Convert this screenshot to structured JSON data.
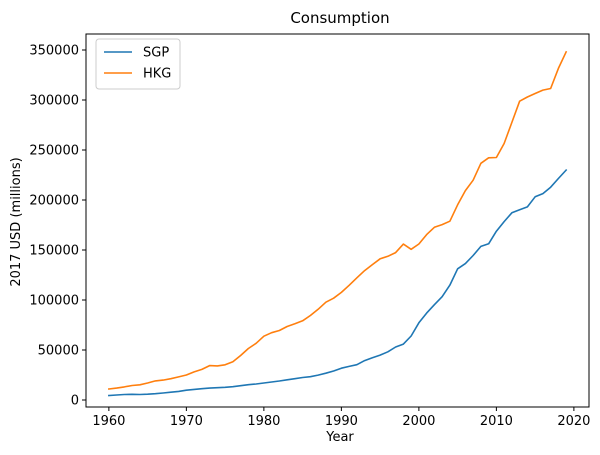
{
  "chart_data": {
    "type": "line",
    "title": "Consumption",
    "xlabel": "Year",
    "ylabel": "2017 USD (millions)",
    "xlim": [
      1957.05,
      2021.95
    ],
    "ylim": [
      -7000,
      366000
    ],
    "xticks": [
      1960,
      1970,
      1980,
      1990,
      2000,
      2010,
      2020
    ],
    "xtick_labels": [
      "1960",
      "1970",
      "1980",
      "1990",
      "2000",
      "2010",
      "2020"
    ],
    "yticks": [
      0,
      50000,
      100000,
      150000,
      200000,
      250000,
      300000,
      350000
    ],
    "ytick_labels": [
      "0",
      "50000",
      "100000",
      "150000",
      "200000",
      "250000",
      "300000",
      "350000"
    ],
    "grid": false,
    "legend": "top-left",
    "x": [
      1960,
      1961,
      1962,
      1963,
      1964,
      1965,
      1966,
      1967,
      1968,
      1969,
      1970,
      1971,
      1972,
      1973,
      1974,
      1975,
      1976,
      1977,
      1978,
      1979,
      1980,
      1981,
      1982,
      1983,
      1984,
      1985,
      1986,
      1987,
      1988,
      1989,
      1990,
      1991,
      1992,
      1993,
      1994,
      1995,
      1996,
      1997,
      1998,
      1999,
      2000,
      2001,
      2002,
      2003,
      2004,
      2005,
      2006,
      2007,
      2008,
      2009,
      2010,
      2011,
      2012,
      2013,
      2014,
      2015,
      2016,
      2017,
      2018,
      2019
    ],
    "series": [
      {
        "name": "SGP",
        "color": "#1f77b4",
        "values": [
          4500,
          5000,
          5500,
          5700,
          5500,
          5800,
          6300,
          7000,
          7800,
          8600,
          9800,
          10600,
          11300,
          11900,
          12300,
          12700,
          13300,
          14300,
          15300,
          16000,
          17000,
          18000,
          19000,
          20200,
          21300,
          22500,
          23300,
          24900,
          26800,
          29000,
          31800,
          33600,
          35300,
          39400,
          42300,
          44900,
          48200,
          53000,
          55900,
          64000,
          77200,
          86900,
          95300,
          103300,
          114900,
          131200,
          136400,
          144500,
          153600,
          156200,
          168800,
          178400,
          187200,
          190300,
          193100,
          203200,
          206400,
          212800,
          221500,
          229900
        ]
      },
      {
        "name": "HKG",
        "color": "#ff7f0e",
        "values": [
          11000,
          11900,
          13100,
          14500,
          15200,
          17000,
          19100,
          19900,
          21300,
          23100,
          25000,
          28100,
          30600,
          34400,
          34100,
          35200,
          38300,
          44500,
          51500,
          56700,
          63800,
          67300,
          69500,
          73500,
          76200,
          79200,
          84500,
          90700,
          97800,
          101800,
          107600,
          114700,
          122200,
          129400,
          135400,
          141200,
          143700,
          147400,
          155900,
          150700,
          156000,
          165400,
          172700,
          175400,
          178800,
          195200,
          209400,
          219800,
          236700,
          242200,
          242500,
          256500,
          277600,
          298800,
          303000,
          306500,
          309900,
          311500,
          331600,
          348100
        ]
      }
    ]
  }
}
